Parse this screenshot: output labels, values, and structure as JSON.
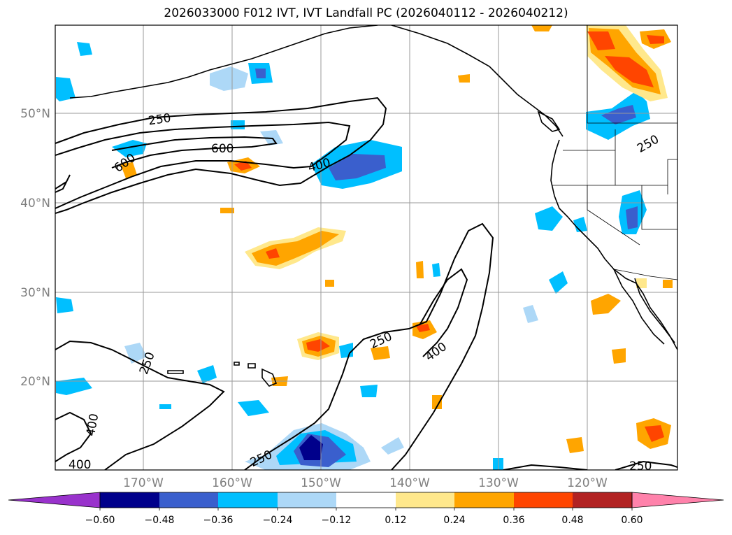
{
  "title": "2026033000 F012 IVT, IVT Landfall PC (2026040112 - 2026040212)",
  "map": {
    "lat_ticks": [
      "50°N",
      "40°N",
      "30°N",
      "20°N"
    ],
    "lon_ticks": [
      "170°W",
      "160°W",
      "150°W",
      "140°W",
      "130°W",
      "120°W"
    ]
  },
  "contours": {
    "labels": [
      "250",
      "600",
      "600",
      "400",
      "250",
      "400",
      "250",
      "250",
      "400",
      "400",
      "250",
      "250"
    ]
  },
  "colorbar": {
    "colors": [
      "#9932cc",
      "#00008b",
      "#3a5fcd",
      "#00bfff",
      "#add8f7",
      "#ffffff",
      "#ffe88c",
      "#ffa500",
      "#ff4500",
      "#b22222",
      "#ff82ab"
    ],
    "tick_labels": [
      "−0.60",
      "−0.48",
      "−0.36",
      "−0.24",
      "−0.12",
      "0.12",
      "0.24",
      "0.36",
      "0.48",
      "0.60"
    ]
  }
}
